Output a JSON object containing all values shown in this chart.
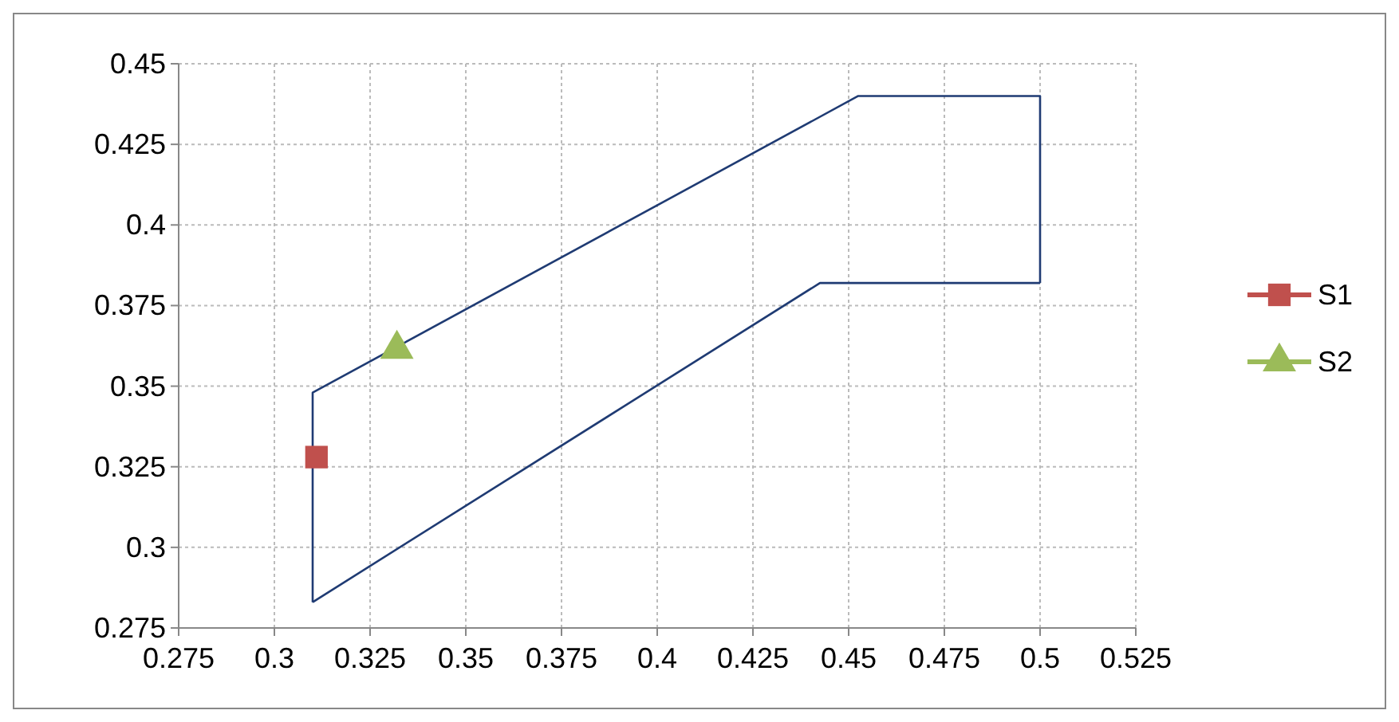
{
  "chart_data": {
    "type": "scatter",
    "xlim": [
      0.275,
      0.525
    ],
    "xticks": [
      0.275,
      0.3,
      0.325,
      0.35,
      0.375,
      0.4,
      0.425,
      0.45,
      0.475,
      0.5,
      0.525
    ],
    "ylim": [
      0.275,
      0.45
    ],
    "yticks": [
      0.275,
      0.3,
      0.325,
      0.35,
      0.375,
      0.4,
      0.425,
      0.45
    ],
    "grid": true,
    "legend": "right",
    "series": [
      {
        "type": "line",
        "color": "#1f3b73",
        "marker": "none",
        "line_style": "solid",
        "x": [
          0.31,
          0.31,
          0.4525,
          0.5,
          0.5
        ],
        "values": [
          0.283,
          0.348,
          0.44,
          0.44,
          0.382
        ]
      },
      {
        "type": "line",
        "color": "#1f3b73",
        "marker": "none",
        "line_style": "solid",
        "x": [
          0.31,
          0.4425,
          0.5
        ],
        "values": [
          0.283,
          0.382,
          0.382
        ]
      },
      {
        "name": "S1",
        "color": "#c0504d",
        "marker": "square",
        "x": [
          0.311
        ],
        "values": [
          0.328
        ]
      },
      {
        "name": "S2",
        "color": "#9bbb59",
        "marker": "triangle",
        "x": [
          0.332
        ],
        "values": [
          0.3615
        ]
      }
    ]
  }
}
